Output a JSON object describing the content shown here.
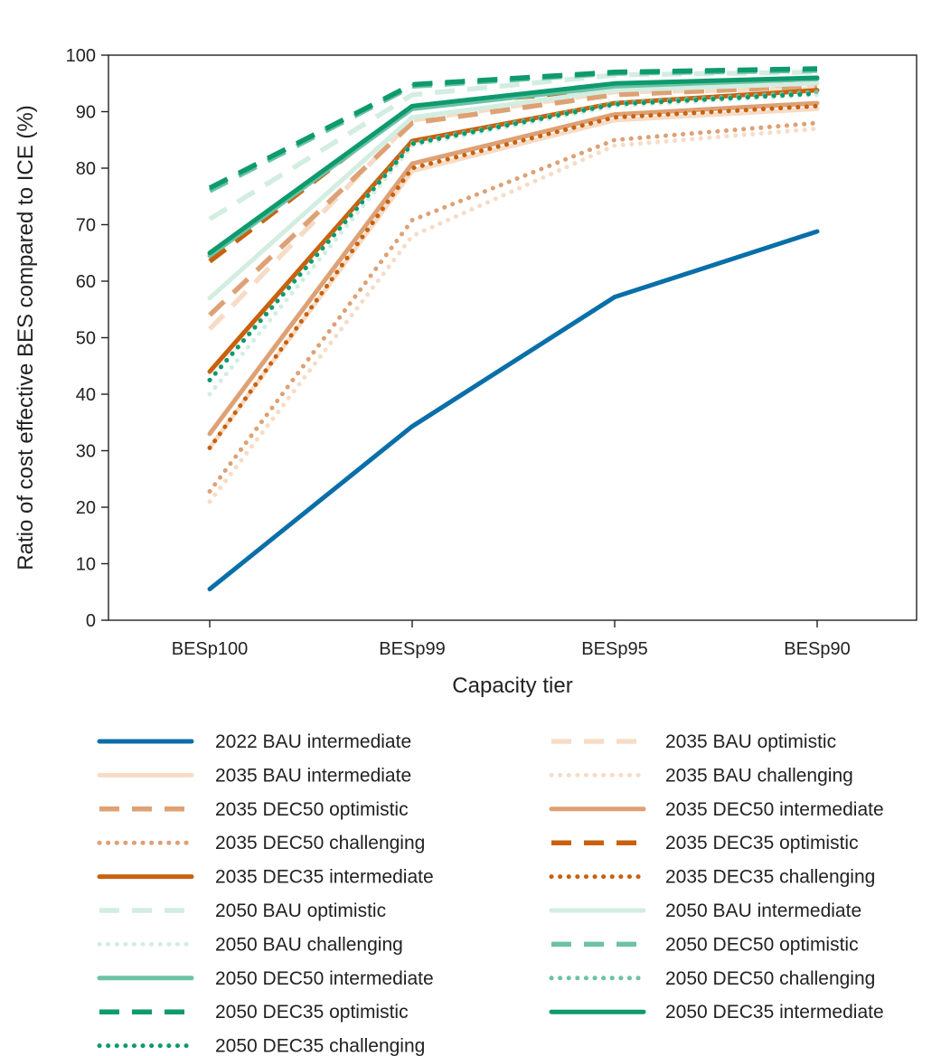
{
  "chart_data": {
    "type": "line",
    "title": "",
    "xlabel": "Capacity tier",
    "ylabel": "Ratio of cost effective BES compared to ICE (%)",
    "categories": [
      "BESp100",
      "BESp99",
      "BESp95",
      "BESp90"
    ],
    "ylim": [
      0,
      100
    ],
    "yticks": [
      0,
      10,
      20,
      30,
      40,
      50,
      60,
      70,
      80,
      90,
      100
    ],
    "grid": false,
    "legend_position": "bottom",
    "series": [
      {
        "name": "2022 BAU intermediate",
        "values": [
          5.5,
          34.3,
          57.2,
          68.8
        ],
        "color": "#0a6fa8",
        "style": "solid"
      },
      {
        "name": "2035 BAU optimistic",
        "values": [
          51.5,
          88.5,
          93.5,
          94.0
        ],
        "color": "#f6dcc7",
        "style": "dashed"
      },
      {
        "name": "2035 BAU intermediate",
        "values": [
          30.5,
          79.5,
          88.5,
          90.5
        ],
        "color": "#f6dcc7",
        "style": "solid"
      },
      {
        "name": "2035 BAU challenging",
        "values": [
          21.0,
          68.0,
          84.0,
          87.0
        ],
        "color": "#f6dcc7",
        "style": "dotted"
      },
      {
        "name": "2035 DEC50 optimistic",
        "values": [
          54.0,
          88.0,
          93.0,
          94.5
        ],
        "color": "#dea175",
        "style": "dashed"
      },
      {
        "name": "2035 DEC50 intermediate",
        "values": [
          33.0,
          80.8,
          89.5,
          91.5
        ],
        "color": "#dea175",
        "style": "solid"
      },
      {
        "name": "2035 DEC50 challenging",
        "values": [
          22.8,
          70.8,
          85.0,
          88.0
        ],
        "color": "#dea175",
        "style": "dotted"
      },
      {
        "name": "2035 DEC35 optimistic",
        "values": [
          63.5,
          91.0,
          94.0,
          95.0
        ],
        "color": "#c8610e",
        "style": "dashed"
      },
      {
        "name": "2035 DEC35 intermediate",
        "values": [
          44.0,
          84.8,
          91.5,
          93.8
        ],
        "color": "#c8610e",
        "style": "solid"
      },
      {
        "name": "2035 DEC35 challenging",
        "values": [
          30.5,
          80.0,
          89.0,
          91.0
        ],
        "color": "#c8610e",
        "style": "dotted"
      },
      {
        "name": "2050 BAU optimistic",
        "values": [
          71.0,
          93.0,
          96.5,
          97.0
        ],
        "color": "#d3ede1",
        "style": "dashed"
      },
      {
        "name": "2050 BAU intermediate",
        "values": [
          57.0,
          89.0,
          93.8,
          95.0
        ],
        "color": "#d3ede1",
        "style": "solid"
      },
      {
        "name": "2050 BAU challenging",
        "values": [
          40.0,
          84.0,
          91.0,
          93.0
        ],
        "color": "#d3ede1",
        "style": "dotted"
      },
      {
        "name": "2050 DEC50 optimistic",
        "values": [
          76.0,
          94.5,
          96.8,
          97.3
        ],
        "color": "#6cc2a5",
        "style": "dashed"
      },
      {
        "name": "2050 DEC50 intermediate",
        "values": [
          64.5,
          90.5,
          94.5,
          95.8
        ],
        "color": "#6cc2a5",
        "style": "solid"
      },
      {
        "name": "2050 DEC50 challenging",
        "values": [
          42.5,
          84.5,
          91.5,
          93.5
        ],
        "color": "#6cc2a5",
        "style": "dotted"
      },
      {
        "name": "2050 DEC35 optimistic",
        "values": [
          76.5,
          94.8,
          97.0,
          97.6
        ],
        "color": "#0d9a6d",
        "style": "dashed"
      },
      {
        "name": "2050 DEC35 intermediate",
        "values": [
          65.0,
          91.0,
          95.0,
          96.0
        ],
        "color": "#0d9a6d",
        "style": "solid"
      },
      {
        "name": "2050 DEC35 challenging",
        "values": [
          42.5,
          84.3,
          91.3,
          93.2
        ],
        "color": "#0d9a6d",
        "style": "dotted"
      }
    ],
    "legend_order": [
      "2022 BAU intermediate",
      "2035 BAU optimistic",
      "2035 BAU intermediate",
      "2035 BAU challenging",
      "2035 DEC50 optimistic",
      "2035 DEC50 intermediate",
      "2035 DEC50 challenging",
      "2035 DEC35 optimistic",
      "2035 DEC35 intermediate",
      "2035 DEC35 challenging",
      "2050 BAU optimistic",
      "2050 BAU intermediate",
      "2050 BAU challenging",
      "2050 DEC50 optimistic",
      "2050 DEC50 intermediate",
      "2050 DEC50 challenging",
      "2050 DEC35 optimistic",
      "2050 DEC35 intermediate",
      "2050 DEC35 challenging"
    ]
  }
}
